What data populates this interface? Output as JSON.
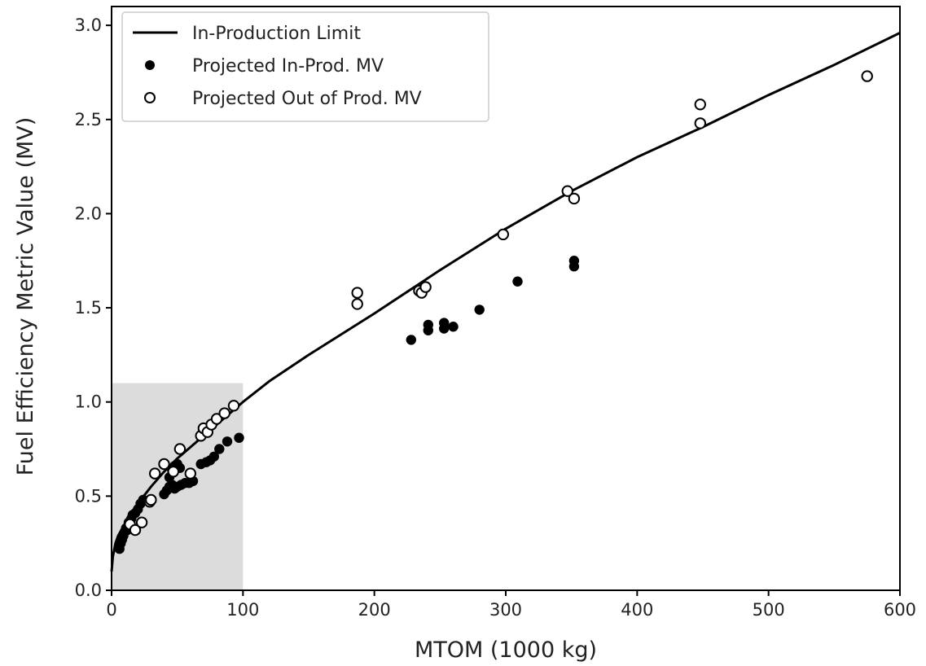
{
  "chart_data": {
    "type": "scatter",
    "title": "",
    "xlabel": "MTOM (1000 kg)",
    "ylabel": "Fuel Efficiency Metric Value (MV)",
    "xlim": [
      0,
      600
    ],
    "ylim": [
      0,
      3.1
    ],
    "xticks": [
      "0",
      "100",
      "200",
      "300",
      "400",
      "500",
      "600"
    ],
    "yticks": [
      "0.0",
      "0.5",
      "1.0",
      "1.5",
      "2.0",
      "2.5",
      "3.0"
    ],
    "grid": false,
    "legend_position": "top-left",
    "highlight_region": {
      "x": [
        0,
        100
      ],
      "y": [
        0,
        1.1
      ],
      "color": "#dcdcdc"
    },
    "limit_curve": {
      "name": "In-Production Limit",
      "x": [
        0,
        1,
        3,
        5,
        10,
        15,
        20,
        30,
        40,
        50,
        60,
        70,
        80,
        90,
        100,
        120,
        150,
        200,
        250,
        300,
        350,
        400,
        450,
        500,
        550,
        600
      ],
      "y": [
        0.1,
        0.18,
        0.25,
        0.29,
        0.35,
        0.41,
        0.46,
        0.55,
        0.63,
        0.7,
        0.76,
        0.82,
        0.88,
        0.94,
        1.0,
        1.11,
        1.25,
        1.47,
        1.7,
        1.92,
        2.12,
        2.3,
        2.46,
        2.63,
        2.79,
        2.96
      ]
    },
    "series": [
      {
        "name": "Projected In-Prod. MV",
        "marker": "filled",
        "color": "#000000",
        "points": [
          [
            6,
            0.22
          ],
          [
            7,
            0.25
          ],
          [
            8,
            0.27
          ],
          [
            9,
            0.29
          ],
          [
            10,
            0.31
          ],
          [
            11,
            0.33
          ],
          [
            12,
            0.32
          ],
          [
            13,
            0.36
          ],
          [
            15,
            0.38
          ],
          [
            16,
            0.4
          ],
          [
            18,
            0.41
          ],
          [
            20,
            0.43
          ],
          [
            22,
            0.46
          ],
          [
            24,
            0.48
          ],
          [
            40,
            0.51
          ],
          [
            42,
            0.53
          ],
          [
            44,
            0.55
          ],
          [
            46,
            0.56
          ],
          [
            48,
            0.54
          ],
          [
            50,
            0.55
          ],
          [
            53,
            0.56
          ],
          [
            56,
            0.57
          ],
          [
            59,
            0.57
          ],
          [
            62,
            0.58
          ],
          [
            44,
            0.6
          ],
          [
            46,
            0.64
          ],
          [
            48,
            0.66
          ],
          [
            50,
            0.67
          ],
          [
            52,
            0.65
          ],
          [
            68,
            0.67
          ],
          [
            72,
            0.68
          ],
          [
            75,
            0.69
          ],
          [
            78,
            0.71
          ],
          [
            82,
            0.75
          ],
          [
            88,
            0.79
          ],
          [
            97,
            0.81
          ],
          [
            228,
            1.33
          ],
          [
            241,
            1.38
          ],
          [
            241,
            1.41
          ],
          [
            253,
            1.39
          ],
          [
            253,
            1.42
          ],
          [
            260,
            1.4
          ],
          [
            280,
            1.49
          ],
          [
            309,
            1.64
          ],
          [
            352,
            1.72
          ],
          [
            352,
            1.75
          ]
        ]
      },
      {
        "name": "Projected Out of Prod. MV",
        "marker": "open",
        "color": "#000000",
        "points": [
          [
            14,
            0.35
          ],
          [
            18,
            0.32
          ],
          [
            23,
            0.36
          ],
          [
            29,
            0.47
          ],
          [
            30,
            0.48
          ],
          [
            33,
            0.62
          ],
          [
            40,
            0.67
          ],
          [
            47,
            0.63
          ],
          [
            52,
            0.75
          ],
          [
            60,
            0.62
          ],
          [
            68,
            0.82
          ],
          [
            70,
            0.86
          ],
          [
            73,
            0.84
          ],
          [
            76,
            0.88
          ],
          [
            80,
            0.91
          ],
          [
            86,
            0.94
          ],
          [
            93,
            0.98
          ],
          [
            187,
            1.52
          ],
          [
            187,
            1.58
          ],
          [
            234,
            1.59
          ],
          [
            236,
            1.58
          ],
          [
            239,
            1.61
          ],
          [
            298,
            1.89
          ],
          [
            347,
            2.12
          ],
          [
            352,
            2.08
          ],
          [
            448,
            2.48
          ],
          [
            448,
            2.58
          ],
          [
            575,
            2.73
          ]
        ]
      }
    ]
  }
}
